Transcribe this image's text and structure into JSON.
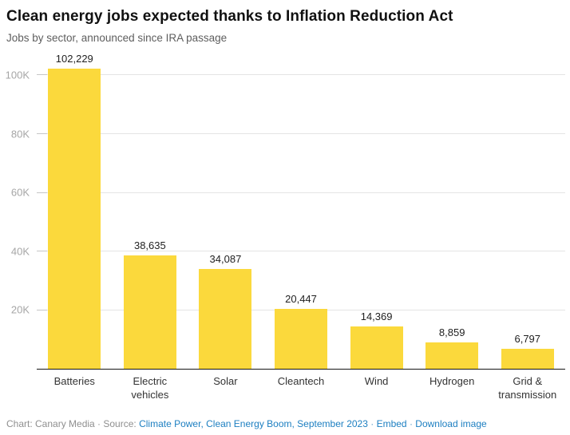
{
  "header": {
    "title": "Clean energy jobs expected thanks to Inflation Reduction Act",
    "subtitle": "Jobs by sector, announced since IRA passage"
  },
  "chart_data": {
    "type": "bar",
    "title": "Clean energy jobs expected thanks to Inflation Reduction Act",
    "subtitle": "Jobs by sector, announced since IRA passage",
    "categories": [
      "Batteries",
      "Electric vehicles",
      "Solar",
      "Cleantech",
      "Wind",
      "Hydrogen",
      "Grid & transmission"
    ],
    "values": [
      102229,
      38635,
      34087,
      20447,
      14369,
      8859,
      6797
    ],
    "value_labels": [
      "102,229",
      "38,635",
      "34,087",
      "20,447",
      "14,369",
      "8,859",
      "6,797"
    ],
    "xlabel": "",
    "ylabel": "",
    "ylim": [
      0,
      108000
    ],
    "yticks": [
      20000,
      40000,
      60000,
      80000,
      100000
    ],
    "ytick_labels": [
      "20K",
      "40K",
      "60K",
      "80K",
      "100K"
    ],
    "grid": "horizontal",
    "legend": false,
    "bar_color": "#FBD93C"
  },
  "colors": {
    "bar": "#FBD93C",
    "link": "#1d7fc1",
    "axis": "#161616",
    "gridline": "#e4e4e4",
    "ytick_text": "#a6a6a6",
    "footer_text": "#8f8f8f"
  },
  "footer": {
    "prefix": "Chart: Canary Media · Source: ",
    "source_link": "Climate Power, Clean Energy Boom, September 2023",
    "sep1": " · ",
    "embed_link": "Embed",
    "sep2": " · ",
    "download_link": "Download image"
  }
}
